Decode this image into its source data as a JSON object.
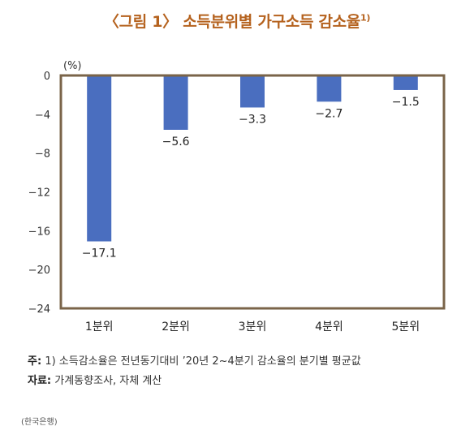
{
  "title": {
    "text": "〈그림 1〉 소득분위별 가구소득 감소율",
    "footnote_mark": "1)"
  },
  "chart_data": {
    "type": "bar",
    "unit_label": "(%)",
    "categories": [
      "1분위",
      "2분위",
      "3분위",
      "4분위",
      "5분위"
    ],
    "values": [
      -17.1,
      -5.6,
      -3.3,
      -2.7,
      -1.5
    ],
    "value_labels": [
      "−17.1",
      "−5.6",
      "−3.3",
      "−2.7",
      "−1.5"
    ],
    "y_ticks": [
      0,
      -4,
      -8,
      -12,
      -16,
      -20,
      -24
    ],
    "y_tick_labels": [
      "0",
      "−4",
      "−8",
      "−12",
      "−16",
      "−20",
      "−24"
    ],
    "ylim": [
      -24,
      0
    ],
    "grid": false,
    "bar_color": "#4A6EBF",
    "frame_color": "#7A6449"
  },
  "notes": {
    "note_label": "주:",
    "note_text": "1) 소득감소율은 전년동기대비 ’20년 2~4분기 감소율의 분기별 평균값",
    "source_label": "자료:",
    "source_text": "가계동향조사, 자체 계산"
  },
  "credit": "(한국은행)",
  "colors": {
    "title": "#B5621E",
    "bar": "#4A6EBF",
    "frame": "#7A6449"
  }
}
